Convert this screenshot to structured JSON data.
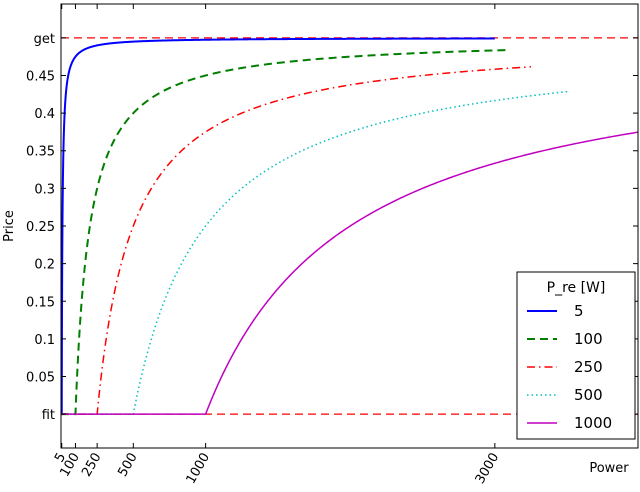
{
  "chart_data": {
    "type": "line",
    "xlabel": "Power",
    "ylabel": "Price",
    "xlim": [
      0,
      3990
    ],
    "ylim": [
      -0.045,
      0.545
    ],
    "fit": 0,
    "get": 0.5,
    "x_ticks": [
      {
        "value": 5,
        "label": "5"
      },
      {
        "value": 100,
        "label": "100"
      },
      {
        "value": 250,
        "label": "250"
      },
      {
        "value": 500,
        "label": "500"
      },
      {
        "value": 1000,
        "label": "1000"
      },
      {
        "value": 3000,
        "label": "3000"
      }
    ],
    "y_ticks": [
      {
        "value": 0,
        "label": "fit"
      },
      {
        "value": 0.05,
        "label": "0.05"
      },
      {
        "value": 0.1,
        "label": "0.1"
      },
      {
        "value": 0.15,
        "label": "0.15"
      },
      {
        "value": 0.2,
        "label": "0.2"
      },
      {
        "value": 0.25,
        "label": "0.25"
      },
      {
        "value": 0.3,
        "label": "0.3"
      },
      {
        "value": 0.35,
        "label": "0.35"
      },
      {
        "value": 0.4,
        "label": "0.4"
      },
      {
        "value": 0.45,
        "label": "0.45"
      },
      {
        "value": 0.5,
        "label": "get"
      }
    ],
    "reference_lines": [
      {
        "axis": "y",
        "value": 0.5,
        "color": "#ff0000",
        "style": "dashed"
      },
      {
        "axis": "y",
        "value": 0,
        "color": "#ff0000",
        "style": "dashed"
      }
    ],
    "legend": {
      "title": "P_re [W]",
      "placement": "lower-right"
    },
    "series": [
      {
        "name": "5",
        "p_re": 5,
        "x_end": 3000,
        "color": "#0000ff",
        "style": "solid",
        "width": 2
      },
      {
        "name": "100",
        "p_re": 100,
        "x_end": 3100,
        "color": "#007f00",
        "style": "dashed",
        "width": 2
      },
      {
        "name": "250",
        "p_re": 250,
        "x_end": 3250,
        "color": "#ff0000",
        "style": "dashdot",
        "width": 1.5
      },
      {
        "name": "500",
        "p_re": 500,
        "x_end": 3500,
        "color": "#00bfbf",
        "style": "dotted",
        "width": 1.5
      },
      {
        "name": "1000",
        "p_re": 1000,
        "x_end": 3990,
        "color": "#bf00bf",
        "style": "solid",
        "width": 1.5
      }
    ]
  }
}
